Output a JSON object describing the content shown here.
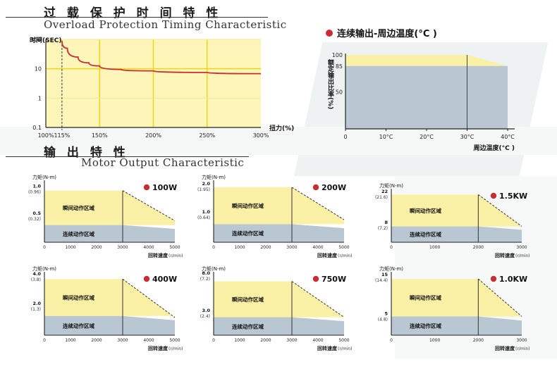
{
  "colors": {
    "bg_plot": "#fdf6b8",
    "accent_red": "#c62e36",
    "grid_yellow": "#f0d418",
    "continuous_blue": "#b9c7d2",
    "intermittent_yellow": "#fbf1a6",
    "text_dark": "#222222",
    "title_rule": "#333333"
  },
  "overload": {
    "title_cn": "过 载 保 护 时 间 特 性",
    "title_en": "Overload Protection Timing Characteristic"
  },
  "temperature": {
    "legend": "连续输出-周边温度(°C )"
  },
  "motor": {
    "title_cn": "输 出 特 性",
    "title_en": "Motor Output Characteristic"
  },
  "chart_data": [
    {
      "type": "line",
      "ylabel": "时间(SEC)",
      "xlabel": "扭力(%)",
      "x_ticks": [
        "100%",
        "115%",
        "150%",
        "200%",
        "250%",
        "300%"
      ],
      "y_ticks": [
        "100",
        "10",
        "1",
        "0.1"
      ],
      "y_scale": "log",
      "xlim": [
        100,
        300
      ],
      "ylim": [
        0.1,
        100
      ],
      "grid": true,
      "series": [
        {
          "x": [
            115,
            120,
            130,
            140,
            150,
            170,
            200,
            250,
            300
          ],
          "y": [
            90,
            50,
            25,
            16,
            12.5,
            9.5,
            8.5,
            7.5,
            6.8
          ]
        }
      ]
    },
    {
      "type": "area",
      "ylabel": "额定输出比率(%)",
      "xlabel": "周边温度(°C )",
      "x_ticks": [
        "0",
        "10°C",
        "20°C",
        "30°C",
        "40°C"
      ],
      "y_ticks": [
        "100",
        "85",
        "50"
      ],
      "xlim": [
        0,
        40
      ],
      "ylim": [
        0,
        100
      ],
      "series": [
        {
          "x": [
            0,
            30,
            40
          ],
          "y": [
            100,
            100,
            85
          ]
        },
        {
          "x": [
            0,
            40
          ],
          "y": [
            85,
            85
          ]
        }
      ]
    },
    {
      "type": "area",
      "legend": "100W",
      "ylabel": "力矩(N-m)",
      "xlabel": "回转速度",
      "xunit": "(r/min)",
      "x_ticks": [
        "0",
        "1000",
        "2000",
        "3000",
        "4000",
        "5000"
      ],
      "xlim": [
        0,
        5000
      ],
      "ylim": [
        0,
        1.1
      ],
      "y_ticks": [
        {
          "v": 1.0,
          "t": "1.0",
          "s": "(0.96)"
        },
        {
          "v": 0.5,
          "t": "0.5",
          "s": "(0.32)"
        }
      ],
      "rated": 0.32,
      "peak": 0.96,
      "knee": 3000,
      "end_peak": 0.4,
      "region_labels": [
        "瞬间动作区域",
        "连续动作区域"
      ]
    },
    {
      "type": "area",
      "legend": "200W",
      "ylabel": "力矩(N-m)",
      "xlabel": "回转速度",
      "xunit": "(r/min)",
      "x_ticks": [
        "0",
        "1000",
        "2000",
        "3000",
        "4000",
        "5000"
      ],
      "xlim": [
        0,
        5000
      ],
      "ylim": [
        0,
        2.1
      ],
      "y_ticks": [
        {
          "v": 2.0,
          "t": "2.0",
          "s": "(1.95)"
        },
        {
          "v": 1.0,
          "t": "1.0",
          "s": "(0.64)"
        }
      ],
      "rated": 0.64,
      "peak": 1.95,
      "knee": 3000,
      "end_peak": 0.8,
      "region_labels": [
        "瞬间动作区域",
        "连续动作区域"
      ]
    },
    {
      "type": "area",
      "legend": "1.5KW",
      "ylabel": "力矩(N-m)",
      "xlabel": "回转速度",
      "xunit": "(r/min)",
      "x_ticks": [
        "0",
        "1000",
        "2000",
        "3000"
      ],
      "xlim": [
        0,
        3000
      ],
      "ylim": [
        0,
        23
      ],
      "y_ticks": [
        {
          "v": 22,
          "t": "22",
          "s": "(21.6)"
        },
        {
          "v": 8,
          "t": "8",
          "s": "(7.2)"
        }
      ],
      "rated": 7.2,
      "peak": 21.6,
      "knee": 2000,
      "end_peak": 7.2,
      "region_labels": [
        "瞬间动作区域",
        "连续动作区域"
      ]
    },
    {
      "type": "area",
      "legend": "400W",
      "ylabel": "力矩(N-m)",
      "xlabel": "回转速度",
      "xunit": "(r/min)",
      "x_ticks": [
        "0",
        "1000",
        "2000",
        "3000",
        "4000",
        "5000"
      ],
      "xlim": [
        0,
        5000
      ],
      "ylim": [
        0,
        4.1
      ],
      "y_ticks": [
        {
          "v": 4.0,
          "t": "4.0",
          "s": "(3.8)"
        },
        {
          "v": 2.0,
          "t": "2.0",
          "s": "(1.3)"
        }
      ],
      "rated": 1.3,
      "peak": 3.8,
      "knee": 3000,
      "end_peak": 1.2,
      "region_labels": [
        "瞬间动作区域",
        "连续动作区域"
      ]
    },
    {
      "type": "area",
      "legend": "750W",
      "ylabel": "力矩(N-m)",
      "xlabel": "回转速度",
      "xunit": "(r/min)",
      "x_ticks": [
        "0",
        "1000",
        "2000",
        "3000",
        "4000",
        "5000"
      ],
      "xlim": [
        0,
        5000
      ],
      "ylim": [
        0,
        8.1
      ],
      "y_ticks": [
        {
          "v": 8.0,
          "t": "8.0",
          "s": "(7.2)"
        },
        {
          "v": 3.0,
          "t": "3.0",
          "s": "(2.4)"
        }
      ],
      "rated": 2.4,
      "peak": 7.2,
      "knee": 3000,
      "end_peak": 2.4,
      "region_labels": [
        "瞬间动作区域",
        "连续动作区域"
      ]
    },
    {
      "type": "area",
      "legend": "1.0KW",
      "ylabel": "力矩(N-m)",
      "xlabel": "回转速度",
      "xunit": "(r/min)",
      "x_ticks": [
        "0",
        "1000",
        "2000",
        "3000"
      ],
      "xlim": [
        0,
        3000
      ],
      "ylim": [
        0,
        15.5
      ],
      "y_ticks": [
        {
          "v": 15,
          "t": "15",
          "s": "(14.4)"
        },
        {
          "v": 5,
          "t": "5",
          "s": "(4.8)"
        }
      ],
      "rated": 4.8,
      "peak": 14.4,
      "knee": 2000,
      "end_peak": 4.8,
      "region_labels": [
        "瞬间动作区域",
        "连续动作区域"
      ]
    }
  ]
}
